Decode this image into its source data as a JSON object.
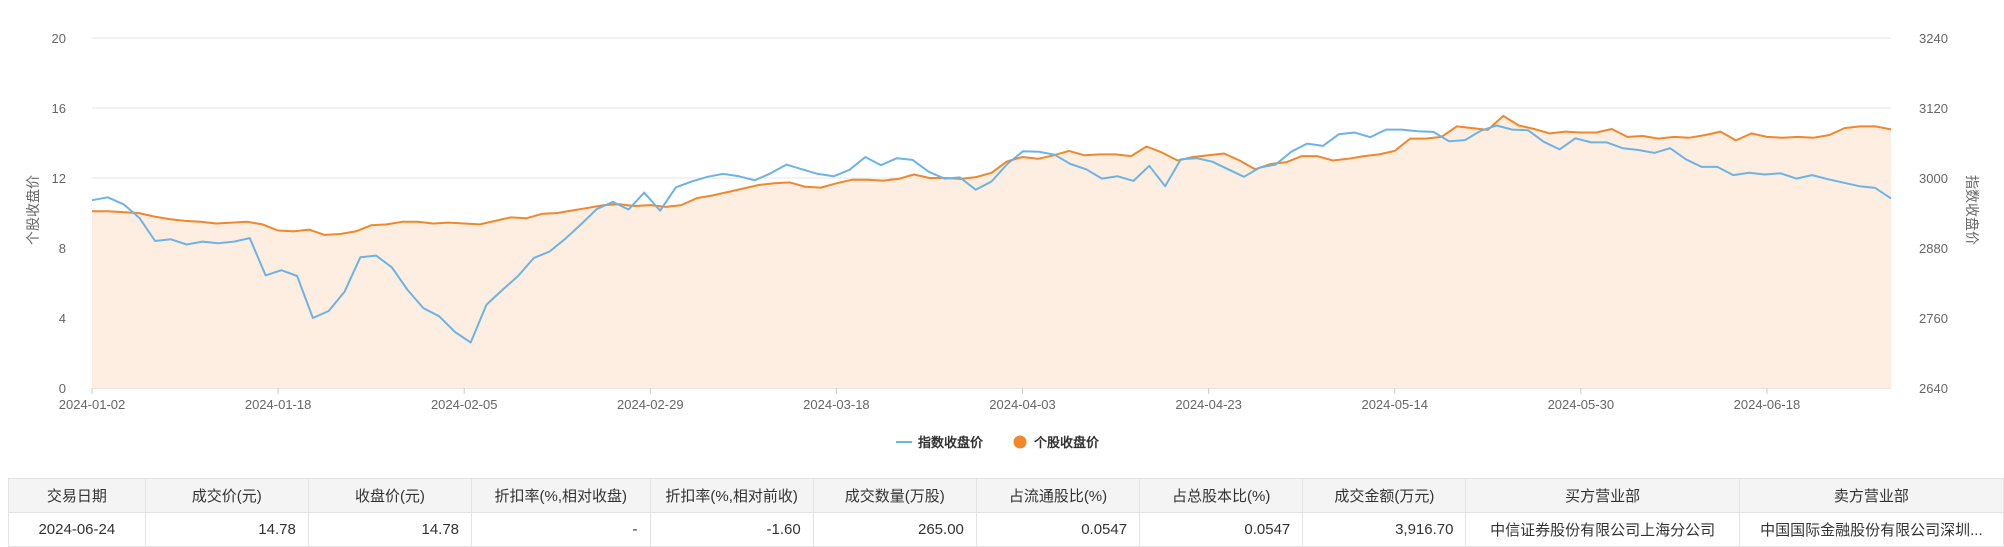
{
  "chart_data": {
    "type": "line",
    "ylabel_left": "个股收盘价",
    "ylabel_right": "指数收盘价",
    "left_axis": {
      "min": 0,
      "max": 20,
      "ticks": [
        0,
        4,
        8,
        12,
        16,
        20
      ]
    },
    "right_axis": {
      "min": 2640,
      "max": 3240,
      "ticks": [
        2640,
        2760,
        2880,
        3000,
        3120,
        3240
      ]
    },
    "x_tick_labels": [
      "2024-01-02",
      "2024-01-18",
      "2024-02-05",
      "2024-02-29",
      "2024-03-18",
      "2024-04-03",
      "2024-04-23",
      "2024-05-14",
      "2024-05-30",
      "2024-06-18"
    ],
    "x_tick_index": [
      0,
      12,
      24,
      36,
      48,
      60,
      72,
      84,
      96,
      108
    ],
    "series": [
      {
        "name": "指数收盘价",
        "axis": "right",
        "color": "#6db3e3",
        "values": [
          2962,
          2967,
          2955,
          2932,
          2892,
          2895,
          2886,
          2891,
          2888,
          2891,
          2897,
          2833,
          2842,
          2832,
          2760,
          2772,
          2805,
          2864,
          2867,
          2847,
          2808,
          2777,
          2763,
          2736,
          2718,
          2783,
          2808,
          2832,
          2863,
          2874,
          2896,
          2921,
          2947,
          2959,
          2946,
          2975,
          2944,
          2984,
          2994,
          3002,
          3007,
          3003,
          2996,
          3008,
          3023,
          3015,
          3007,
          3003,
          3014,
          3036,
          3022,
          3034,
          3031,
          3011,
          2999,
          3001,
          2980,
          2994,
          3024,
          3046,
          3045,
          3040,
          3024,
          3015,
          2999,
          3003,
          2995,
          3021,
          2986,
          3032,
          3034,
          3028,
          3015,
          3002,
          3018,
          3023,
          3045,
          3059,
          3055,
          3075,
          3078,
          3070,
          3083,
          3083,
          3080,
          3079,
          3063,
          3065,
          3081,
          3090,
          3083,
          3082,
          3062,
          3049,
          3068,
          3061,
          3061,
          3051,
          3048,
          3043,
          3051,
          3032,
          3019,
          3019,
          3005,
          3009,
          3006,
          3008,
          2999,
          3005,
          2998,
          2992,
          2986,
          2983,
          2965
        ]
      },
      {
        "name": "个股收盘价",
        "axis": "left",
        "color": "#f0882b",
        "fill": "#fdeee1",
        "values": [
          10.1,
          10.1,
          10.05,
          10.0,
          9.8,
          9.65,
          9.55,
          9.5,
          9.4,
          9.45,
          9.5,
          9.35,
          9.0,
          8.95,
          9.05,
          8.75,
          8.8,
          8.95,
          9.3,
          9.35,
          9.5,
          9.5,
          9.4,
          9.45,
          9.4,
          9.35,
          9.55,
          9.75,
          9.7,
          9.95,
          10.0,
          10.15,
          10.3,
          10.45,
          10.5,
          10.4,
          10.45,
          10.35,
          10.45,
          10.85,
          11.0,
          11.2,
          11.4,
          11.6,
          11.7,
          11.75,
          11.5,
          11.45,
          11.7,
          11.9,
          11.9,
          11.85,
          11.95,
          12.2,
          12.0,
          12.0,
          11.95,
          12.05,
          12.3,
          12.95,
          13.2,
          13.1,
          13.3,
          13.55,
          13.3,
          13.35,
          13.35,
          13.25,
          13.8,
          13.45,
          13.0,
          13.2,
          13.3,
          13.4,
          13.0,
          12.5,
          12.8,
          12.9,
          13.25,
          13.25,
          13.0,
          13.1,
          13.25,
          13.35,
          13.55,
          14.25,
          14.25,
          14.35,
          14.95,
          14.85,
          14.75,
          15.55,
          15.0,
          14.8,
          14.55,
          14.65,
          14.6,
          14.6,
          14.8,
          14.35,
          14.4,
          14.25,
          14.35,
          14.3,
          14.45,
          14.65,
          14.15,
          14.55,
          14.35,
          14.3,
          14.35,
          14.3,
          14.45,
          14.85,
          14.95,
          14.95,
          14.78
        ]
      }
    ]
  },
  "legend": [
    {
      "label": "指数收盘价",
      "color": "#6db3e3",
      "shape": "line"
    },
    {
      "label": "个股收盘价",
      "color": "#f0882b",
      "shape": "dot"
    }
  ],
  "table": {
    "headers": [
      "交易日期",
      "成交价(元)",
      "收盘价(元)",
      "折扣率(%,相对收盘)",
      "折扣率(%,相对前收)",
      "成交数量(万股)",
      "占流通股比(%)",
      "占总股本比(%)",
      "成交金额(万元)",
      "买方营业部",
      "卖方营业部"
    ],
    "rows": [
      [
        "2024-06-24",
        "14.78",
        "14.78",
        "-",
        "-1.60",
        "265.00",
        "0.0547",
        "0.0547",
        "3,916.70",
        "中信证券股份有限公司上海分公司",
        "中国国际金融股份有限公司深圳..."
      ]
    ]
  }
}
